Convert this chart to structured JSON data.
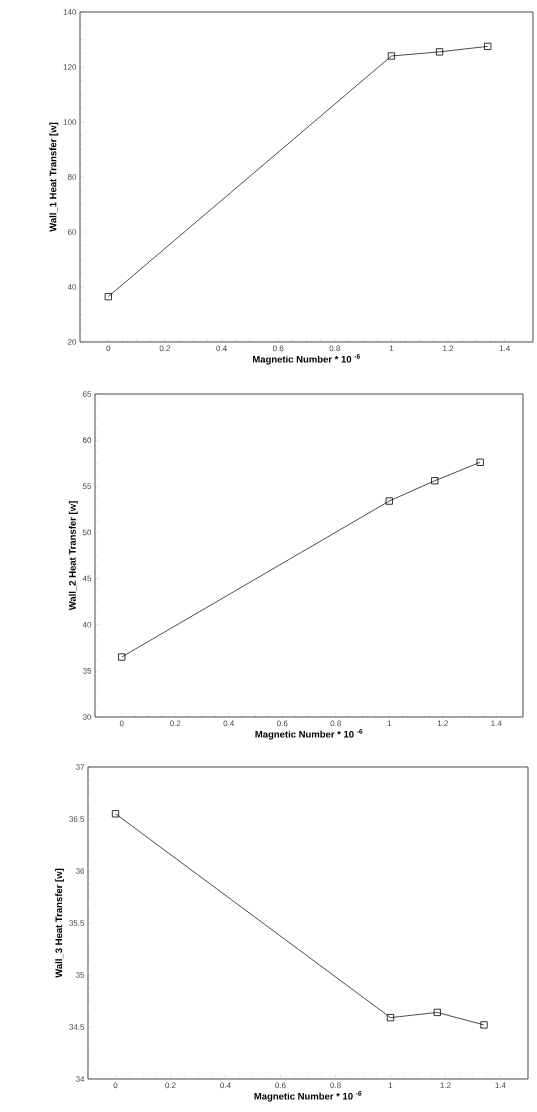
{
  "chart_data": [
    {
      "type": "line",
      "xlabel": "Magnetic Number * 10 $^{-6}$",
      "ylabel": "Wall_1 Heat Transfer [w]",
      "x": [
        0,
        1,
        1.17,
        1.34
      ],
      "series": [
        {
          "color": "#000000",
          "values": [
            36.5,
            124,
            125.5,
            127.5
          ]
        }
      ],
      "xlim": [
        -0.1,
        1.5
      ],
      "ylim": [
        20,
        140
      ],
      "xticks": [
        0,
        0.2,
        0.4,
        0.6,
        0.8,
        1,
        1.2,
        1.4
      ],
      "yticks": [
        20,
        40,
        60,
        80,
        100,
        120,
        140
      ],
      "marker": "square",
      "grid": false
    },
    {
      "type": "line",
      "xlabel": "Magnetic Number * 10 $^{-6}$",
      "ylabel": "Wall_2 Heat Transfer [w]",
      "x": [
        0,
        1,
        1.17,
        1.34
      ],
      "series": [
        {
          "color": "#000000",
          "values": [
            36.5,
            53.4,
            55.6,
            57.6
          ]
        }
      ],
      "xlim": [
        -0.1,
        1.5
      ],
      "ylim": [
        30,
        65
      ],
      "xticks": [
        0,
        0.2,
        0.4,
        0.6,
        0.8,
        1,
        1.2,
        1.4
      ],
      "yticks": [
        30,
        35,
        40,
        45,
        50,
        55,
        60,
        65
      ],
      "marker": "square",
      "grid": false
    },
    {
      "type": "line",
      "xlabel": "Magnetic Number * 10 $^{-6}$",
      "ylabel": "Wall_3 Heat Transfer [w]",
      "x": [
        0,
        1,
        1.17,
        1.34
      ],
      "series": [
        {
          "color": "#000000",
          "values": [
            36.55,
            34.59,
            34.64,
            34.52
          ]
        }
      ],
      "xlim": [
        -0.1,
        1.5
      ],
      "ylim": [
        34,
        37
      ],
      "xticks": [
        0,
        0.2,
        0.4,
        0.6,
        0.8,
        1,
        1.2,
        1.4
      ],
      "yticks": [
        34,
        34.5,
        35,
        35.5,
        36,
        36.5,
        37
      ],
      "marker": "square",
      "grid": false
    }
  ]
}
